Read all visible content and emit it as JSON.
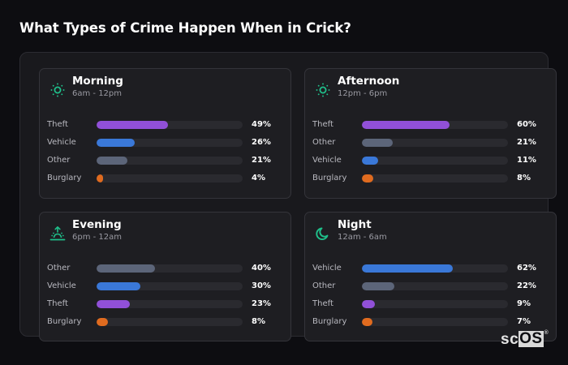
{
  "page": {
    "title": "What Types of Crime Happen When in Crick?",
    "logo": {
      "text_a": "sc",
      "text_b": "OS",
      "reg": "®"
    }
  },
  "colors": {
    "Theft": "#9150d8",
    "Vehicle": "#3a78d8",
    "Other": "#5c6579",
    "Burglary": "#e06b1f",
    "icon": "#1fbf8a"
  },
  "cards": [
    {
      "title": "Morning",
      "subtitle": "6am - 12pm",
      "icon": "sun-icon",
      "rows": [
        {
          "label": "Theft",
          "value": 49,
          "display": "49%"
        },
        {
          "label": "Vehicle",
          "value": 26,
          "display": "26%"
        },
        {
          "label": "Other",
          "value": 21,
          "display": "21%"
        },
        {
          "label": "Burglary",
          "value": 4,
          "display": "4%"
        }
      ]
    },
    {
      "title": "Afternoon",
      "subtitle": "12pm - 6pm",
      "icon": "sun-icon",
      "rows": [
        {
          "label": "Theft",
          "value": 60,
          "display": "60%"
        },
        {
          "label": "Other",
          "value": 21,
          "display": "21%"
        },
        {
          "label": "Vehicle",
          "value": 11,
          "display": "11%"
        },
        {
          "label": "Burglary",
          "value": 8,
          "display": "8%"
        }
      ]
    },
    {
      "title": "Evening",
      "subtitle": "6pm - 12am",
      "icon": "sunset-icon",
      "rows": [
        {
          "label": "Other",
          "value": 40,
          "display": "40%"
        },
        {
          "label": "Vehicle",
          "value": 30,
          "display": "30%"
        },
        {
          "label": "Theft",
          "value": 23,
          "display": "23%"
        },
        {
          "label": "Burglary",
          "value": 8,
          "display": "8%"
        }
      ]
    },
    {
      "title": "Night",
      "subtitle": "12am - 6am",
      "icon": "moon-icon",
      "rows": [
        {
          "label": "Vehicle",
          "value": 62,
          "display": "62%"
        },
        {
          "label": "Other",
          "value": 22,
          "display": "22%"
        },
        {
          "label": "Theft",
          "value": 9,
          "display": "9%"
        },
        {
          "label": "Burglary",
          "value": 7,
          "display": "7%"
        }
      ]
    }
  ],
  "chart_data": {
    "type": "bar",
    "orientation": "horizontal",
    "title": "What Types of Crime Happen When in Crick?",
    "xlim": [
      0,
      100
    ],
    "unit": "%",
    "panels": [
      {
        "name": "Morning",
        "subtitle": "6am - 12pm",
        "categories": [
          "Theft",
          "Vehicle",
          "Other",
          "Burglary"
        ],
        "values": [
          49,
          26,
          21,
          4
        ]
      },
      {
        "name": "Afternoon",
        "subtitle": "12pm - 6pm",
        "categories": [
          "Theft",
          "Other",
          "Vehicle",
          "Burglary"
        ],
        "values": [
          60,
          21,
          11,
          8
        ]
      },
      {
        "name": "Evening",
        "subtitle": "6pm - 12am",
        "categories": [
          "Other",
          "Vehicle",
          "Theft",
          "Burglary"
        ],
        "values": [
          40,
          30,
          23,
          8
        ]
      },
      {
        "name": "Night",
        "subtitle": "12am - 6am",
        "categories": [
          "Vehicle",
          "Other",
          "Theft",
          "Burglary"
        ],
        "values": [
          62,
          22,
          9,
          7
        ]
      }
    ],
    "legend": "none (labels inline)",
    "grid": false
  }
}
